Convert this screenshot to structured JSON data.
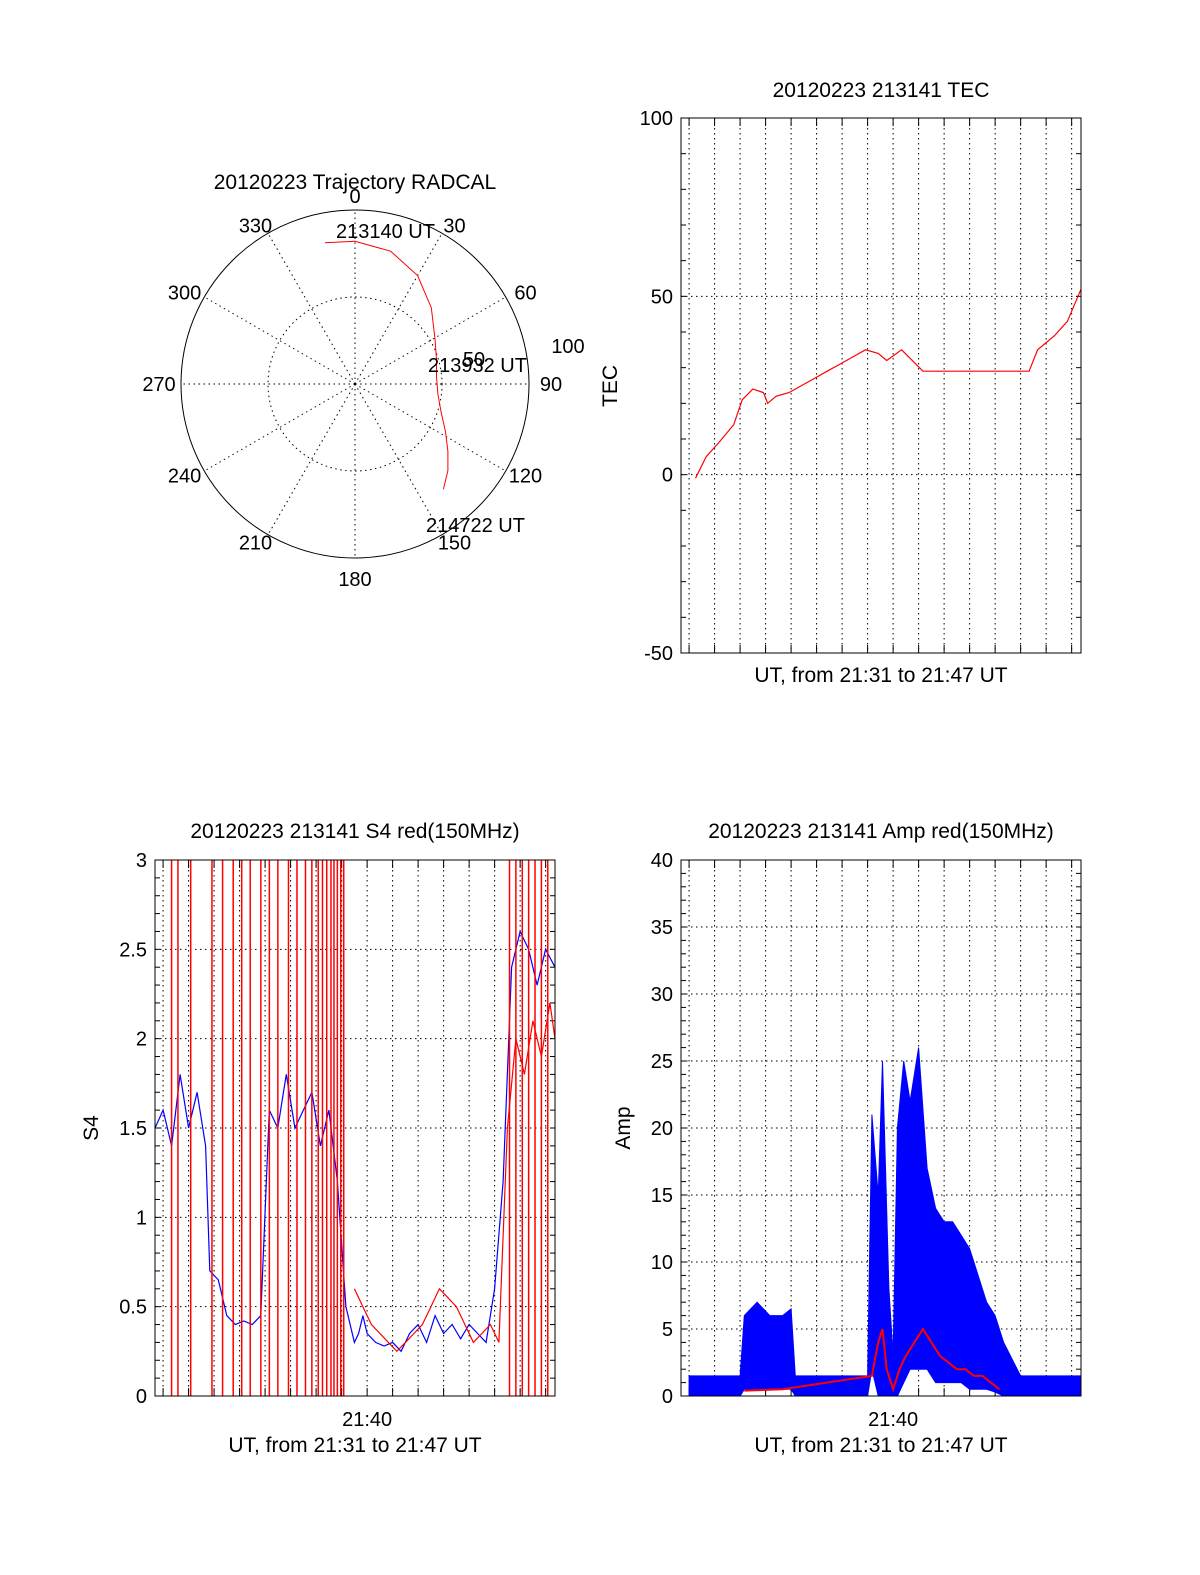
{
  "colors": {
    "red": "#ff0000",
    "blue": "#0000ff",
    "black": "#000000"
  },
  "chart_data": [
    {
      "id": "polar",
      "type": "polar",
      "title": "20120223 Trajectory RADCAL",
      "azimuth_labels": [
        "0",
        "30",
        "60",
        "90",
        "120",
        "150",
        "180",
        "210",
        "240",
        "270",
        "300",
        "330"
      ],
      "radial_labels": [
        "50",
        "100"
      ],
      "elevation_max": 100,
      "track": [
        {
          "az": 348,
          "el": 83
        },
        {
          "az": 0,
          "el": 82
        },
        {
          "az": 15,
          "el": 79
        },
        {
          "az": 30,
          "el": 72
        },
        {
          "az": 45,
          "el": 62
        },
        {
          "az": 60,
          "el": 53
        },
        {
          "az": 73,
          "el": 49
        },
        {
          "az": 85,
          "el": 47
        },
        {
          "az": 97,
          "el": 48
        },
        {
          "az": 108,
          "el": 52
        },
        {
          "az": 118,
          "el": 59
        },
        {
          "az": 126,
          "el": 66
        },
        {
          "az": 133,
          "el": 73
        },
        {
          "az": 140,
          "el": 79
        }
      ],
      "annotations": [
        "213140 UT",
        "213932 UT",
        "214722 UT"
      ]
    },
    {
      "id": "tec",
      "type": "line",
      "title": "20120223 213141 TEC",
      "xlabel": "UT, from 21:31 to 21:47 UT",
      "ylabel": "TEC",
      "xlim": [
        "21:31:41",
        "21:47:22"
      ],
      "ylim": [
        -50,
        100
      ],
      "yticks": [
        "-50",
        "0",
        "50",
        "100"
      ],
      "series": [
        {
          "color": "red",
          "x": [
            "21:32:15",
            "21:32:40",
            "21:33:10",
            "21:33:45",
            "21:34:05",
            "21:34:30",
            "21:34:55",
            "21:35:05",
            "21:35:25",
            "21:35:55",
            "21:36:25",
            "21:36:55",
            "21:37:25",
            "21:37:55",
            "21:38:25",
            "21:38:55",
            "21:39:25",
            "21:39:45",
            "21:40:20",
            "21:41:10",
            "21:42:00",
            "21:43:00",
            "21:44:00",
            "21:45:00",
            "21:45:20",
            "21:45:40",
            "21:46:20",
            "21:46:50",
            "21:47:22"
          ],
          "y": [
            -1,
            5,
            9,
            14,
            21,
            24,
            23,
            20,
            22,
            23,
            25,
            27,
            29,
            31,
            33,
            35,
            34,
            32,
            35,
            29,
            29,
            29,
            29,
            29,
            29,
            35,
            39,
            43,
            52
          ]
        }
      ]
    },
    {
      "id": "s4",
      "type": "line",
      "title": "20120223 213141 S4 red(150MHz)",
      "xlabel": "UT, from 21:31 to 21:47 UT",
      "ylabel": "S4",
      "xlim": [
        "21:31:41",
        "21:47:22"
      ],
      "ylim": [
        0,
        3
      ],
      "yticks": [
        "0",
        "0.5",
        "1",
        "1.5",
        "2",
        "2.5",
        "3"
      ],
      "xticks": [
        {
          "x": "21:40:00",
          "label": "21:40"
        }
      ],
      "series": [
        {
          "color": "blue",
          "x": [
            "21:31:41",
            "21:32:00",
            "21:32:20",
            "21:32:40",
            "21:33:00",
            "21:33:20",
            "21:33:40",
            "21:33:50",
            "21:34:10",
            "21:34:30",
            "21:34:50",
            "21:35:10",
            "21:35:30",
            "21:35:50",
            "21:36:10",
            "21:36:30",
            "21:36:50",
            "21:37:10",
            "21:37:30",
            "21:37:50",
            "21:38:10",
            "21:38:30",
            "21:38:50",
            "21:39:10",
            "21:39:30",
            "21:39:40",
            "21:39:50",
            "21:40:00",
            "21:40:20",
            "21:40:40",
            "21:41:00",
            "21:41:20",
            "21:41:40",
            "21:42:00",
            "21:42:20",
            "21:42:40",
            "21:43:00",
            "21:43:20",
            "21:43:40",
            "21:44:00",
            "21:44:20",
            "21:44:40",
            "21:45:00",
            "21:45:20",
            "21:45:40",
            "21:46:00",
            "21:46:20",
            "21:46:40",
            "21:47:00",
            "21:47:22"
          ],
          "y": [
            1.5,
            1.6,
            1.4,
            1.8,
            1.5,
            1.7,
            1.4,
            0.7,
            0.65,
            0.45,
            0.4,
            0.42,
            0.4,
            0.45,
            1.6,
            1.5,
            1.8,
            1.5,
            1.6,
            1.7,
            1.4,
            1.6,
            1.2,
            0.5,
            0.3,
            0.35,
            0.45,
            0.35,
            0.3,
            0.28,
            0.3,
            0.25,
            0.35,
            0.4,
            0.3,
            0.45,
            0.35,
            0.4,
            0.32,
            0.4,
            0.35,
            0.3,
            0.6,
            1.2,
            2.4,
            2.6,
            2.5,
            2.3,
            2.5,
            2.4
          ]
        },
        {
          "color": "red",
          "x": [
            "21:39:30",
            "21:39:50",
            "21:40:10",
            "21:40:30",
            "21:40:50",
            "21:41:10",
            "21:41:30",
            "21:41:50",
            "21:42:10",
            "21:42:30",
            "21:42:50",
            "21:43:10",
            "21:43:30",
            "21:43:50",
            "21:44:10",
            "21:44:30",
            "21:44:50",
            "21:45:10",
            "21:45:30",
            "21:45:50",
            "21:46:10",
            "21:46:30",
            "21:46:50",
            "21:47:10",
            "21:47:22"
          ],
          "y": [
            0.6,
            0.5,
            0.4,
            0.35,
            0.3,
            0.25,
            0.3,
            0.35,
            0.4,
            0.5,
            0.6,
            0.55,
            0.5,
            0.4,
            0.3,
            0.35,
            0.4,
            0.3,
            1.5,
            2.0,
            1.8,
            2.1,
            1.9,
            2.2,
            2.0
          ]
        },
        {
          "color": "red",
          "type": "spikes",
          "x": [
            "21:32:20",
            "21:32:35",
            "21:33:05",
            "21:33:55",
            "21:34:20",
            "21:34:45",
            "21:35:05",
            "21:35:25",
            "21:35:50",
            "21:36:10",
            "21:36:30",
            "21:36:55",
            "21:37:15",
            "21:37:35",
            "21:37:50",
            "21:38:05",
            "21:38:15",
            "21:38:25",
            "21:38:35",
            "21:38:42",
            "21:38:50",
            "21:38:58",
            "21:39:05",
            "21:45:35",
            "21:45:50",
            "21:46:05",
            "21:46:20",
            "21:46:35",
            "21:46:50",
            "21:47:05"
          ],
          "y": [
            3,
            3,
            3,
            3,
            3,
            3,
            3,
            3,
            3,
            3,
            3,
            3,
            3,
            3,
            3,
            3,
            3,
            3,
            3,
            3,
            3,
            3,
            3,
            3,
            3,
            3,
            3,
            3,
            3,
            3
          ]
        }
      ]
    },
    {
      "id": "amp",
      "type": "line",
      "title": "20120223 213141 Amp red(150MHz)",
      "xlabel": "UT, from 21:31 to 21:47 UT",
      "ylabel": "Amp",
      "xlim": [
        "21:31:41",
        "21:47:22"
      ],
      "ylim": [
        0,
        40
      ],
      "yticks": [
        "0",
        "5",
        "10",
        "15",
        "20",
        "25",
        "30",
        "35",
        "40"
      ],
      "xticks": [
        {
          "x": "21:40:00",
          "label": "21:40"
        }
      ],
      "series": [
        {
          "color": "blue",
          "type": "band",
          "x": [
            "21:32:00",
            "21:33:00",
            "21:34:00",
            "21:34:10",
            "21:34:40",
            "21:35:10",
            "21:35:40",
            "21:36:00",
            "21:36:10",
            "21:37:00",
            "21:38:00",
            "21:39:00",
            "21:39:10",
            "21:39:25",
            "21:39:35",
            "21:39:50",
            "21:40:00",
            "21:40:10",
            "21:40:25",
            "21:40:40",
            "21:41:00",
            "21:41:20",
            "21:41:40",
            "21:42:00",
            "21:42:20",
            "21:42:40",
            "21:43:00",
            "21:43:20",
            "21:43:40",
            "21:44:00",
            "21:44:20",
            "21:45:00",
            "21:46:00",
            "21:47:22"
          ],
          "low": [
            0,
            0,
            0,
            0.5,
            0.5,
            0.5,
            0.5,
            0.5,
            0,
            0,
            0,
            0,
            2,
            0,
            0,
            0,
            0,
            0,
            1,
            2,
            2,
            2,
            1,
            1,
            1,
            1,
            0.5,
            0.5,
            0.5,
            0.3,
            0,
            0,
            0,
            0
          ],
          "high": [
            1.5,
            1.5,
            1.5,
            6,
            7,
            6,
            6,
            6.5,
            1.5,
            1.5,
            1.5,
            1.5,
            21,
            15,
            25,
            8,
            3,
            20,
            25,
            22,
            26,
            17,
            14,
            13,
            13,
            12,
            11,
            9,
            7,
            6,
            4,
            1.5,
            1.5,
            1.5
          ]
        },
        {
          "color": "red",
          "x": [
            "21:34:10",
            "21:35:40",
            "21:39:10",
            "21:39:25",
            "21:39:35",
            "21:39:45",
            "21:40:00",
            "21:40:15",
            "21:40:30",
            "21:40:50",
            "21:41:10",
            "21:41:30",
            "21:41:50",
            "21:42:10",
            "21:42:30",
            "21:42:50",
            "21:43:10",
            "21:43:30",
            "21:43:50",
            "21:44:10"
          ],
          "y": [
            0.4,
            0.5,
            1.5,
            4,
            5,
            2,
            0.5,
            2,
            3,
            4,
            5,
            4,
            3,
            2.5,
            2,
            2,
            1.5,
            1.5,
            1,
            0.5
          ]
        }
      ]
    }
  ]
}
